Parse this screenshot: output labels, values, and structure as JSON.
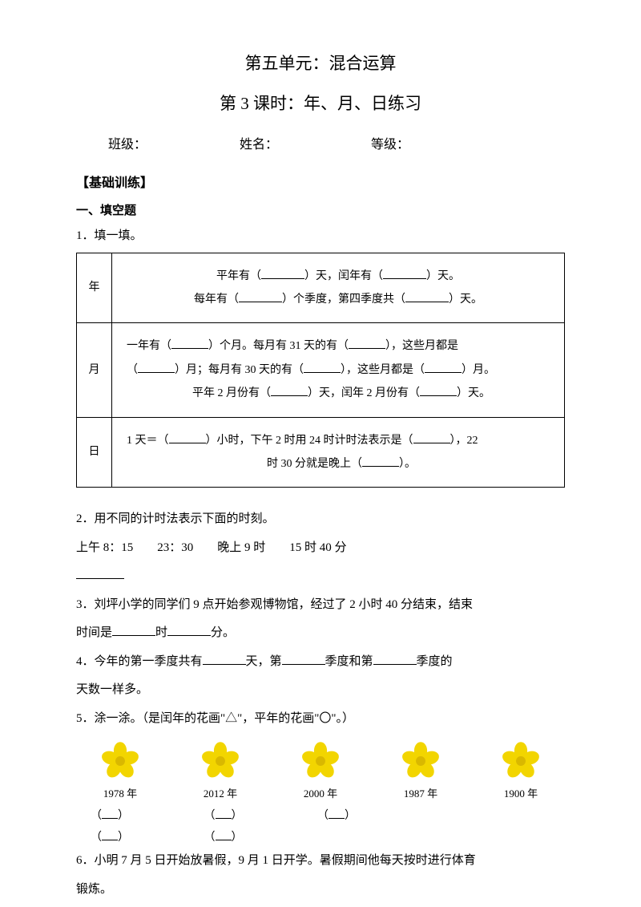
{
  "titles": {
    "main": "第五单元：混合运算",
    "sub": "第 3 课时：年、月、日练习"
  },
  "header": {
    "class_label": "班级：",
    "name_label": "姓名：",
    "grade_label": "等级："
  },
  "section": {
    "base": "【基础训练】",
    "fill": "一、填空题"
  },
  "q1": {
    "prompt": "1．填一填。",
    "rows": {
      "year": "年",
      "month": "月",
      "day": "日"
    },
    "year_l1a": "平年有（",
    "year_l1b": "）天，闰年有（",
    "year_l1c": "）天。",
    "year_l2a": "每年有（",
    "year_l2b": "）个季度，第四季度共（",
    "year_l2c": "）天。",
    "month_l1a": "一年有（",
    "month_l1b": "）个月。每月有 31 天的有（",
    "month_l1c": "），这些月都是",
    "month_l2a": "（",
    "month_l2b": "）月；每月有 30 天的有（",
    "month_l2c": "），这些月都是（",
    "month_l2d": "）月。",
    "month_l3a": "平年 2 月份有（",
    "month_l3b": "）天，闰年 2 月份有（",
    "month_l3c": "）天。",
    "day_l1a": "1 天＝（",
    "day_l1b": "）小时，下午 2 时用 24 时计时法表示是（",
    "day_l1c": "），22",
    "day_l2a": "时 30 分就是晚上（",
    "day_l2b": "）。"
  },
  "q2": {
    "prompt": "2．用不同的计时法表示下面的时刻。",
    "items": "上午 8：15　　23：30　　晚上 9 时　　15 时 40 分"
  },
  "q3": {
    "a": "3．刘坪小学的同学们 9 点开始参观博物馆，经过了 2 小时 40 分结束，结束",
    "b1": "时间是",
    "b2": "时",
    "b3": "分。"
  },
  "q4": {
    "a1": "4．今年的第一季度共有",
    "a2": "天，第",
    "a3": "季度和第",
    "a4": "季度的",
    "b": "天数一样多。"
  },
  "q5": {
    "prompt": "5．涂一涂。（是闰年的花画\"△\"，平年的花画\"〇\"。）",
    "years": [
      "1978 年",
      "2012 年",
      "2000 年",
      "1987 年",
      "1900 年"
    ],
    "paren_open": "（",
    "paren_close": "）",
    "flower_fill": "#f2d500",
    "flower_center": "#d9b800"
  },
  "q6": {
    "a": "6．小明 7 月 5 日开始放暑假，9 月 1 日开学。暑假期间他每天按时进行体育",
    "b": "锻炼。"
  }
}
